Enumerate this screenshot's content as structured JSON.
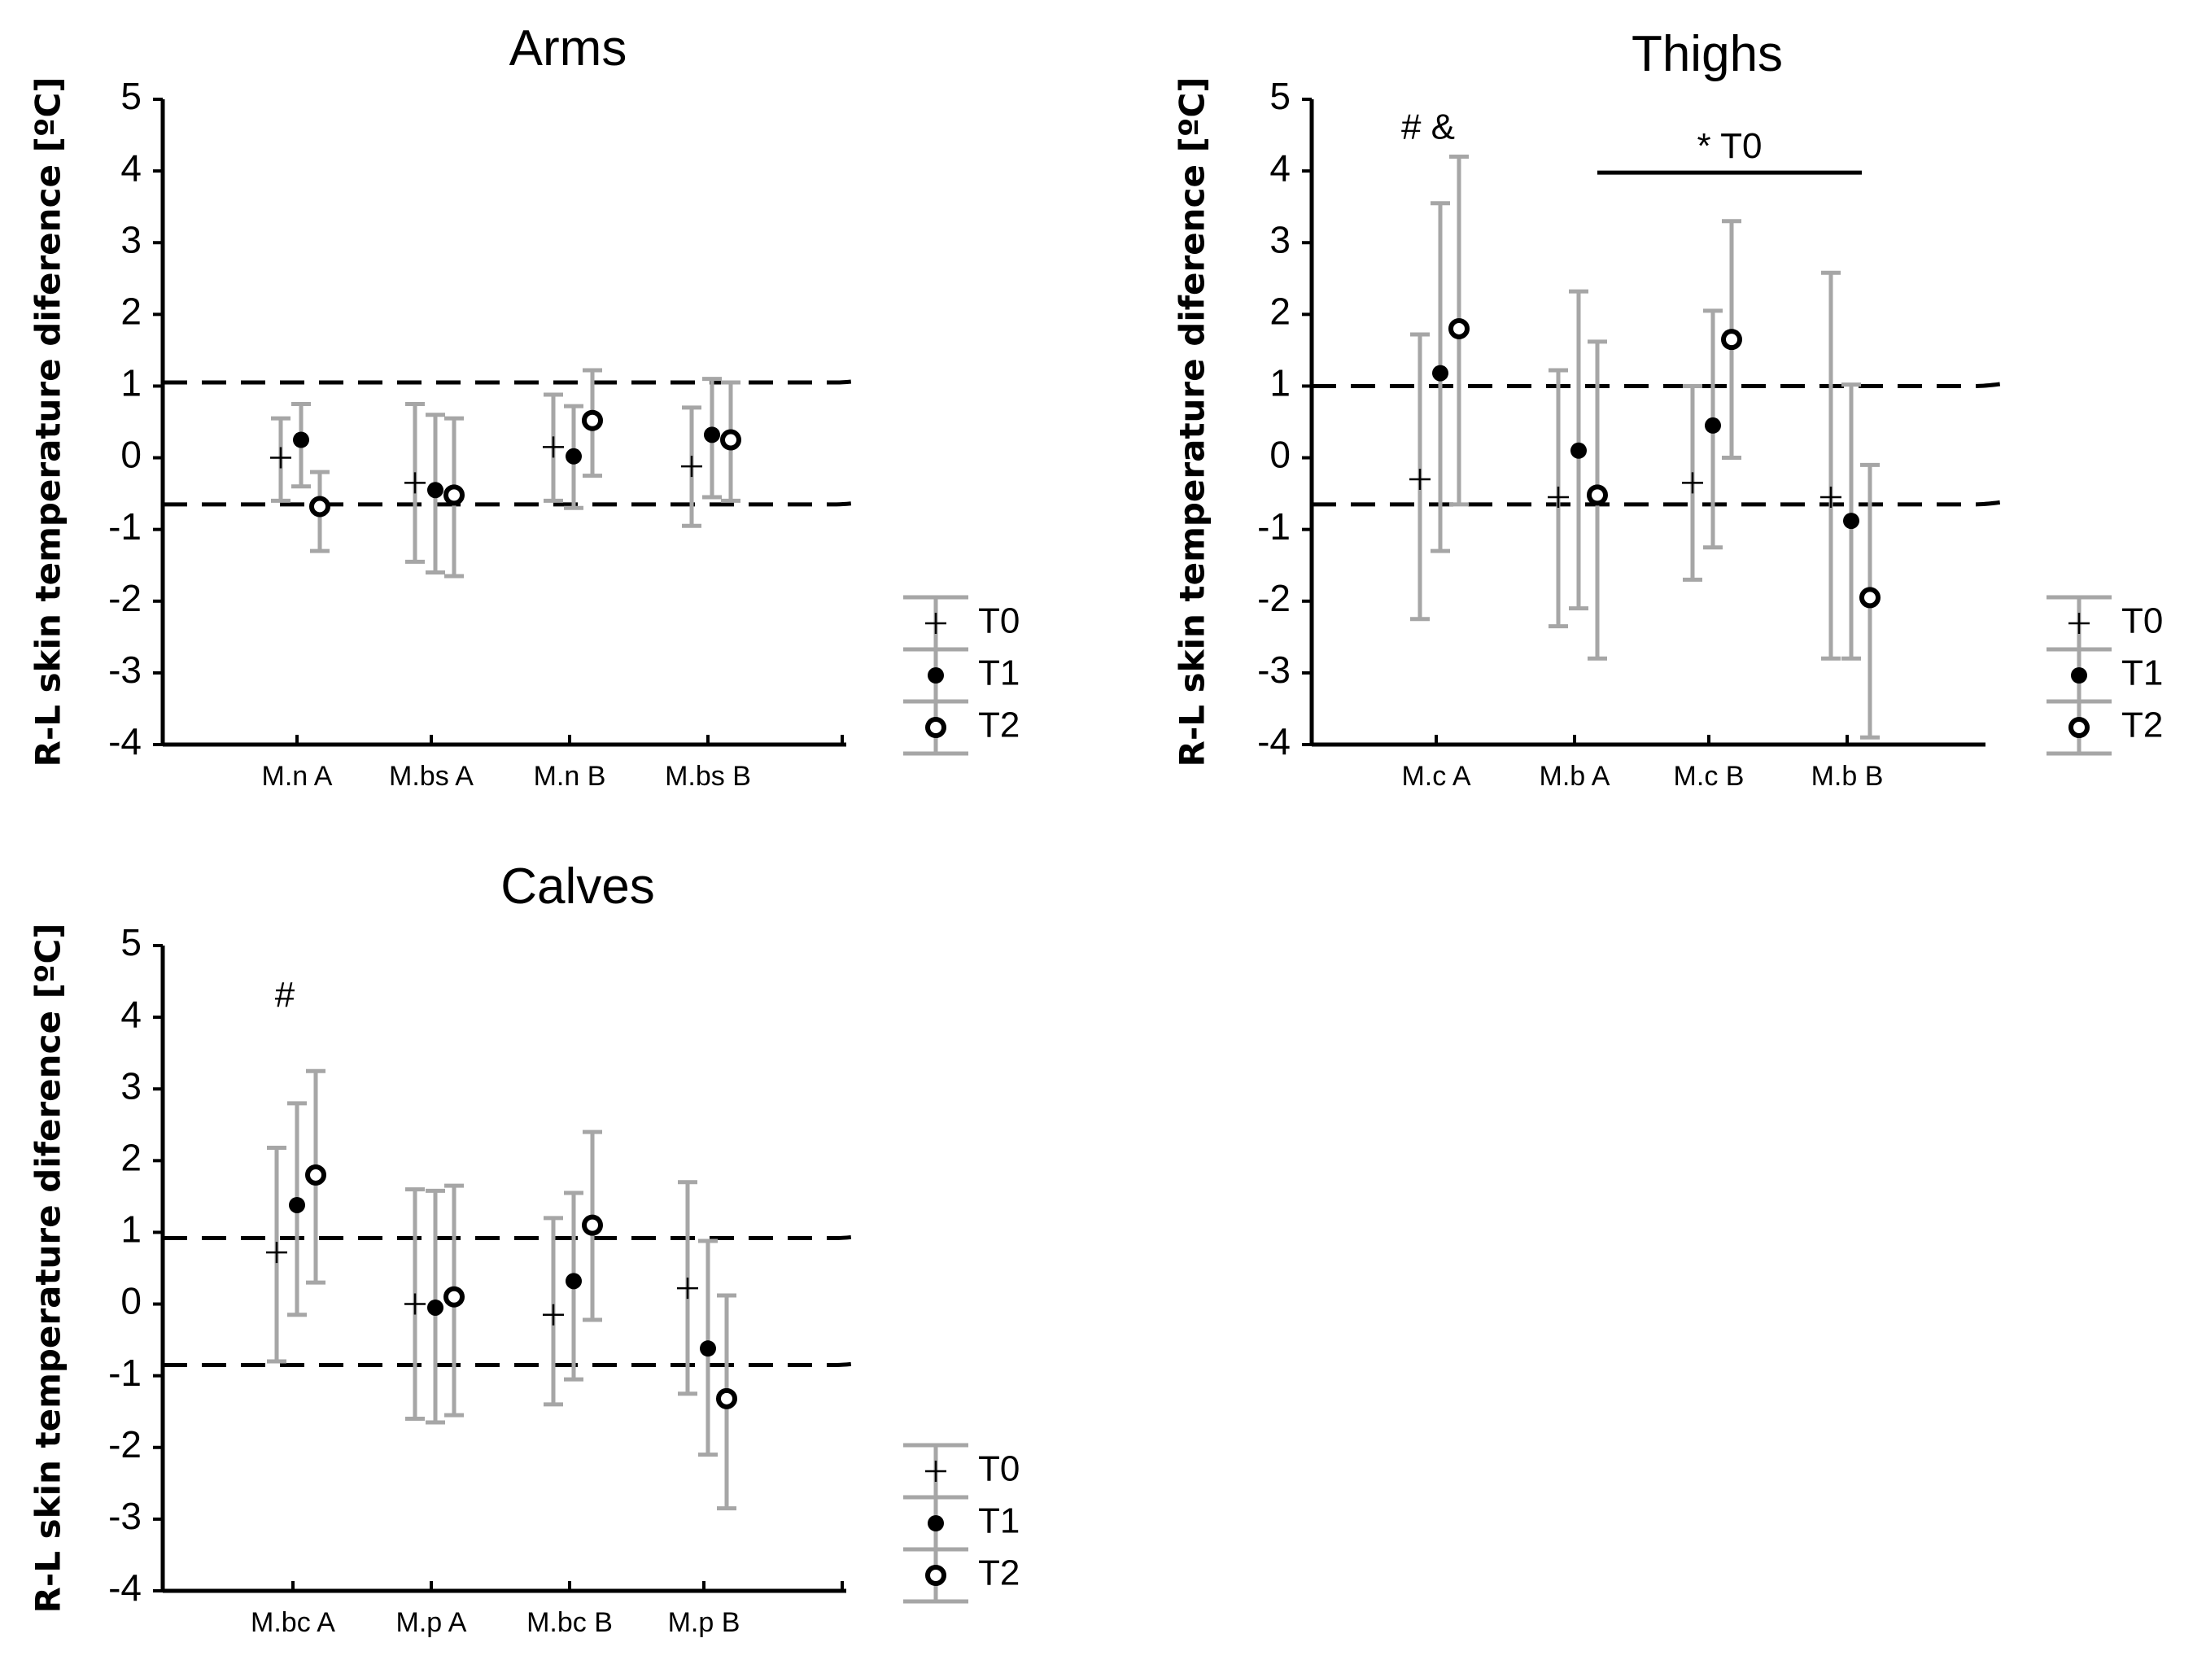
{
  "chart_data": [
    {
      "type": "scatter",
      "title": "Arms",
      "ylabel": "R-L skin temperature diference [ºC]",
      "xlabel": "",
      "ylim": [
        -4,
        5
      ],
      "yticks": [
        "5",
        "4",
        "3",
        "2",
        "1",
        "0",
        "-1",
        "-2",
        "-3",
        "-4"
      ],
      "categories": [
        "M.n A",
        "M.bs  A",
        "M.n  B",
        "M.bs B"
      ],
      "series": [
        {
          "name": "T0",
          "marker": "plus",
          "values": [
            0.0,
            -0.35,
            0.15,
            -0.12
          ],
          "lower": [
            -0.6,
            -1.45,
            -0.6,
            -0.95
          ],
          "upper": [
            0.55,
            0.75,
            0.88,
            0.7
          ]
        },
        {
          "name": "T1",
          "marker": "filled-circle",
          "values": [
            0.25,
            -0.45,
            0.02,
            0.32
          ],
          "lower": [
            -0.4,
            -1.6,
            -0.7,
            -0.55
          ],
          "upper": [
            0.75,
            0.6,
            0.72,
            1.1
          ]
        },
        {
          "name": "T2",
          "marker": "open-circle",
          "values": [
            -0.68,
            -0.52,
            0.52,
            0.25
          ],
          "lower": [
            -1.3,
            -1.65,
            -0.25,
            -0.6
          ],
          "upper": [
            -0.2,
            0.55,
            1.22,
            1.05
          ]
        }
      ],
      "reference_lines": [
        1.05,
        -0.65
      ],
      "annotations": []
    },
    {
      "type": "scatter",
      "title": "Thighs",
      "ylabel": "R-L skin temperature diference [ºC]",
      "xlabel": "",
      "ylim": [
        -4,
        5
      ],
      "yticks": [
        "5",
        "4",
        "3",
        "2",
        "1",
        "0",
        "-1",
        "-2",
        "-3",
        "-4"
      ],
      "categories": [
        "M.c  A",
        "M.b A",
        "M.c  B",
        "M.b  B"
      ],
      "series": [
        {
          "name": "T0",
          "marker": "plus",
          "values": [
            -0.3,
            -0.55,
            -0.35,
            -0.55
          ],
          "lower": [
            -2.25,
            -2.35,
            -1.7,
            -2.8
          ],
          "upper": [
            1.72,
            1.22,
            1.0,
            2.58
          ]
        },
        {
          "name": "T1",
          "marker": "filled-circle",
          "values": [
            1.18,
            0.1,
            0.45,
            -0.88
          ],
          "lower": [
            -1.3,
            -2.1,
            -1.25,
            -2.8
          ],
          "upper": [
            3.55,
            2.32,
            2.05,
            1.02
          ]
        },
        {
          "name": "T2",
          "marker": "open-circle",
          "values": [
            1.8,
            -0.52,
            1.65,
            -1.95
          ],
          "lower": [
            -0.65,
            -2.8,
            0.0,
            -3.9
          ],
          "upper": [
            4.2,
            1.62,
            3.3,
            -0.1
          ]
        }
      ],
      "reference_lines": [
        1.0,
        -0.65
      ],
      "annotations": [
        {
          "text": "# &",
          "category_index": 0,
          "y": 4.45
        },
        {
          "text": "* T0",
          "category_span": [
            1,
            3
          ],
          "y": 4.0
        }
      ]
    },
    {
      "type": "scatter",
      "title": "Calves",
      "ylabel": "R-L skin temperature diference [ºC]",
      "xlabel": "",
      "ylim": [
        -4,
        5
      ],
      "yticks": [
        "5",
        "4",
        "3",
        "2",
        "1",
        "0",
        "-1",
        "-2",
        "-3",
        "-4"
      ],
      "categories": [
        "M.bc  A",
        "M.p  A",
        "M.bc B",
        "M.p B"
      ],
      "series": [
        {
          "name": "T0",
          "marker": "plus",
          "values": [
            0.72,
            0.0,
            -0.15,
            0.22
          ],
          "lower": [
            -0.8,
            -1.6,
            -1.4,
            -1.25
          ],
          "upper": [
            2.18,
            1.6,
            1.2,
            1.7
          ]
        },
        {
          "name": "T1",
          "marker": "filled-circle",
          "values": [
            1.38,
            -0.05,
            0.32,
            -0.62
          ],
          "lower": [
            -0.15,
            -1.65,
            -1.05,
            -2.1
          ],
          "upper": [
            2.8,
            1.58,
            1.55,
            0.88
          ]
        },
        {
          "name": "T2",
          "marker": "open-circle",
          "values": [
            1.8,
            0.1,
            1.1,
            -1.32
          ],
          "lower": [
            0.3,
            -1.55,
            -0.22,
            -2.85
          ],
          "upper": [
            3.25,
            1.65,
            2.4,
            0.12
          ]
        }
      ],
      "reference_lines": [
        0.92,
        -0.85
      ],
      "annotations": [
        {
          "text": "#",
          "category_index": 0,
          "y": 4.15
        }
      ]
    }
  ]
}
